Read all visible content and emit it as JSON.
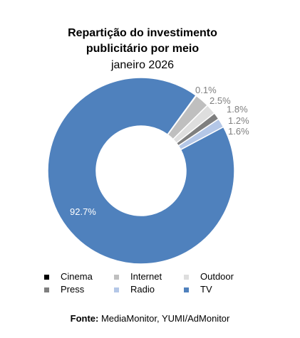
{
  "chart_data": {
    "type": "pie",
    "title_lines": [
      "Repartição do investimento",
      "publicitário por meio"
    ],
    "subtitle": "janeiro 2026",
    "slices": [
      {
        "name": "Cinema",
        "value": 0.1,
        "label": "0.1%",
        "color": "#000000"
      },
      {
        "name": "Internet",
        "value": 2.5,
        "label": "2.5%",
        "color": "#bfbfbf"
      },
      {
        "name": "Outdoor",
        "value": 1.8,
        "label": "1.8%",
        "color": "#dedede"
      },
      {
        "name": "Press",
        "value": 1.2,
        "label": "1.2%",
        "color": "#7f7f7f"
      },
      {
        "name": "Radio",
        "value": 1.6,
        "label": "1.6%",
        "color": "#b4c7e7"
      },
      {
        "name": "TV",
        "value": 92.7,
        "label": "92.7%",
        "color": "#4f81bd"
      }
    ],
    "legend_position": "bottom",
    "donut": true
  },
  "source": {
    "label": "Fonte:",
    "text": " MediaMonitor, YUMI/AdMonitor"
  }
}
